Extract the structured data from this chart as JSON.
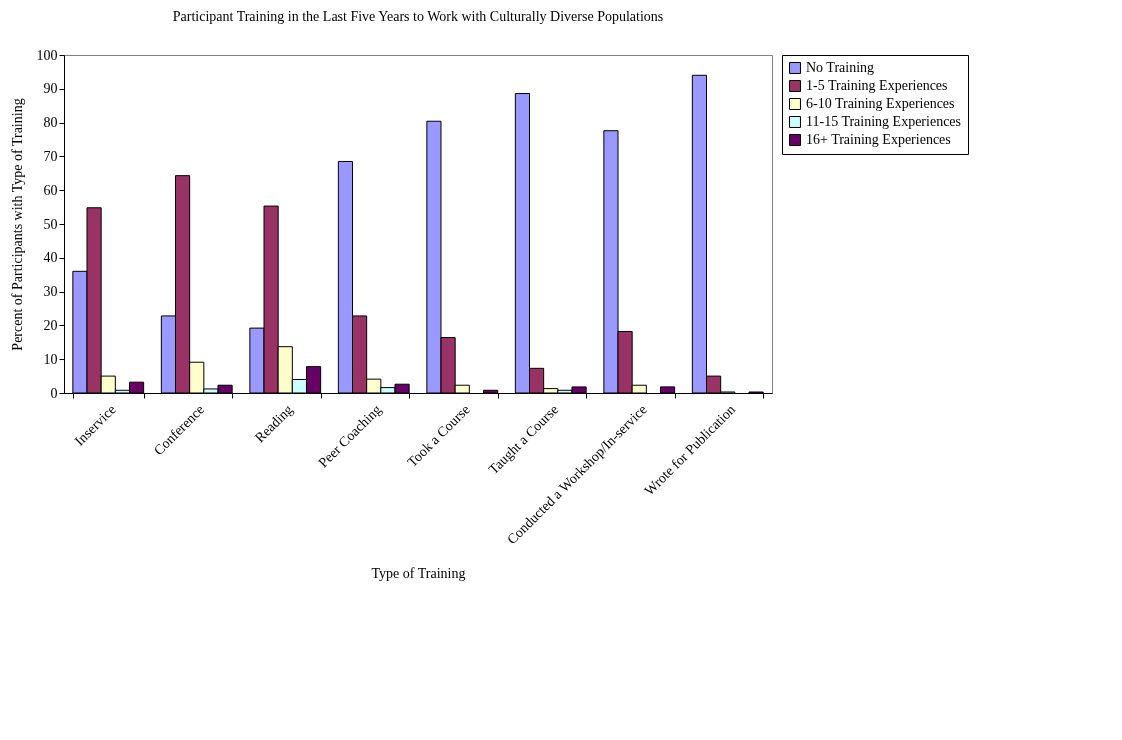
{
  "chart_data": {
    "type": "bar",
    "title": "Participant Training in the Last Five Years to Work with Culturally Diverse Populations",
    "xlabel": "Type of Training",
    "ylabel": "Percent of Participants with Type of Training",
    "categories": [
      "Inservice",
      "Conference",
      "Reading",
      "Peer Coaching",
      "Took a Course",
      "Taught a Course",
      "Conducted a Workshop/In-service",
      "Wrote for Publication"
    ],
    "series": [
      {
        "name": "No Training",
        "color": "#9999ff",
        "values": [
          36,
          22.8,
          19.2,
          68.5,
          80.4,
          88.6,
          77.6,
          94
        ]
      },
      {
        "name": "1-5 Training Experiences",
        "color": "#993366",
        "values": [
          54.8,
          64.3,
          55.3,
          22.8,
          16.4,
          7.3,
          18.2,
          5
        ]
      },
      {
        "name": "6-10 Training Experiences",
        "color": "#ffffcc",
        "values": [
          5,
          9.1,
          13.7,
          4.1,
          2.3,
          1.3,
          2.3,
          0.3
        ]
      },
      {
        "name": "11-15 Training Experiences",
        "color": "#ccffff",
        "values": [
          0.8,
          1.2,
          4,
          1.6,
          null,
          0.8,
          null,
          null
        ]
      },
      {
        "name": "16+ Training Experiences",
        "color": "#660066",
        "values": [
          3.2,
          2.3,
          7.8,
          2.6,
          0.8,
          1.8,
          1.8,
          0.3
        ]
      }
    ],
    "ylim": [
      0,
      100
    ],
    "yticks": [
      0,
      10,
      20,
      30,
      40,
      50,
      60,
      70,
      80,
      90,
      100
    ],
    "legend": "right"
  }
}
